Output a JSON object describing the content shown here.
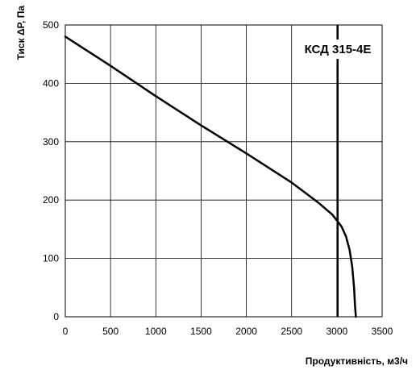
{
  "chart_data": {
    "type": "line",
    "title": "",
    "xlabel": "Продуктивність, м3/ч",
    "ylabel": "Тиск ΔP, Па",
    "xlim": [
      0,
      3500
    ],
    "ylim": [
      0,
      500
    ],
    "xticks": [
      0,
      500,
      1000,
      1500,
      2000,
      2500,
      3000,
      3500
    ],
    "yticks": [
      0,
      100,
      200,
      300,
      400,
      500
    ],
    "xtick_labels": [
      "0",
      "500",
      "1000",
      "1500",
      "2000",
      "2500",
      "3000",
      "3500"
    ],
    "ytick_labels": [
      "0",
      "100",
      "200",
      "300",
      "400",
      "500"
    ],
    "grid": true,
    "series": [
      {
        "x": [
          0,
          500,
          1000,
          1500,
          2000,
          2500,
          2800,
          2950,
          3050,
          3100,
          3140,
          3170,
          3190,
          3200,
          3210
        ],
        "y": [
          480,
          430,
          378,
          328,
          280,
          230,
          195,
          175,
          155,
          138,
          115,
          85,
          50,
          20,
          0
        ]
      }
    ],
    "annotations": [
      {
        "text": "КСД 315-4Е",
        "x": 3010
      }
    ]
  }
}
